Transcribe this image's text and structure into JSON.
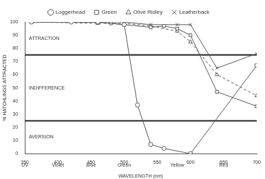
{
  "chart_data": {
    "type": "line",
    "x_label": "WAVELENGTH (nm)",
    "y_label": "% HATCHLINGS ATTRACTED",
    "xlim": [
      350,
      700
    ],
    "xticks": [
      350,
      400,
      450,
      500,
      550,
      600,
      650,
      700
    ],
    "ylim": [
      0,
      100
    ],
    "yticks": [
      0,
      10,
      20,
      30,
      40,
      50,
      60,
      70,
      80,
      90,
      100
    ],
    "grid": false,
    "legend": "top",
    "reference_lines": [
      {
        "y": 75
      },
      {
        "y": 25
      }
    ],
    "regions": [
      {
        "label": "ATTRACTION",
        "from": 75,
        "to": 100
      },
      {
        "label": "INDIFFERENCE",
        "from": 25,
        "to": 75
      },
      {
        "label": "AVERSION",
        "from": 0,
        "to": 25
      }
    ],
    "spectrum": [
      {
        "label": "UV",
        "x": 350
      },
      {
        "label": "Violet",
        "x": 400
      },
      {
        "label": "Blue",
        "x": 450
      },
      {
        "label": "Green",
        "x": 500
      },
      {
        "label": "Yellow",
        "x": 580
      },
      {
        "label": "Red",
        "x": 650
      }
    ],
    "series": [
      {
        "name": "Loggerhead",
        "color": "#555555",
        "marker": "circle",
        "line_style": "solid",
        "x": [
          360,
          420,
          460,
          500,
          520,
          540,
          560,
          600,
          700
        ],
        "values": [
          100,
          100,
          100,
          98,
          37,
          7,
          4,
          0,
          67
        ]
      },
      {
        "name": "Green",
        "color": "#555555",
        "marker": "square",
        "line_style": "solid",
        "x": [
          360,
          420,
          460,
          480,
          500,
          540,
          560,
          580,
          600,
          640,
          700
        ],
        "values": [
          100,
          100,
          100,
          99,
          98,
          96,
          97,
          95,
          90,
          47,
          36
        ]
      },
      {
        "name": "Olive Ridley",
        "color": "#555555",
        "marker": "triangle",
        "line_style": "dashed",
        "x": [
          360,
          460,
          500,
          540,
          580,
          600,
          640,
          700
        ],
        "values": [
          100,
          99,
          99,
          97,
          93,
          85,
          60,
          44
        ]
      },
      {
        "name": "Leatherback",
        "color": "#555555",
        "marker": "cross",
        "line_style": "solid",
        "x": [
          360,
          460,
          500,
          540,
          580,
          600,
          640,
          700
        ],
        "values": [
          100,
          100,
          100,
          98,
          98,
          98,
          65,
          76
        ]
      }
    ]
  }
}
